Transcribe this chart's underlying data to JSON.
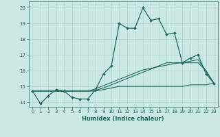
{
  "xlabel": "Humidex (Indice chaleur)",
  "background_color": "#cce8e4",
  "grid_color": "#aed4cf",
  "line_color": "#1a6b5a",
  "xlim": [
    -0.5,
    23.5
  ],
  "ylim": [
    13.7,
    20.4
  ],
  "xtick_labels": [
    "0",
    "1",
    "2",
    "3",
    "4",
    "5",
    "6",
    "7",
    "8",
    "9",
    "10",
    "11",
    "12",
    "13",
    "14",
    "15",
    "16",
    "17",
    "18",
    "19",
    "20",
    "21",
    "22",
    "23"
  ],
  "ytick_values": [
    14,
    15,
    16,
    17,
    18,
    19,
    20
  ],
  "line1": [
    14.7,
    13.9,
    14.4,
    14.8,
    14.7,
    14.3,
    14.2,
    14.2,
    14.8,
    15.8,
    16.3,
    19.0,
    18.7,
    18.7,
    20.0,
    19.2,
    19.3,
    18.3,
    18.4,
    16.5,
    16.8,
    17.0,
    15.8,
    15.2
  ],
  "line2": [
    14.7,
    14.7,
    14.7,
    14.7,
    14.7,
    14.7,
    14.7,
    14.7,
    14.85,
    15.05,
    15.25,
    15.45,
    15.65,
    15.85,
    16.05,
    16.15,
    16.25,
    16.35,
    16.45,
    16.5,
    16.6,
    16.7,
    16.0,
    15.2
  ],
  "line3": [
    14.7,
    14.7,
    14.7,
    14.7,
    14.7,
    14.7,
    14.7,
    14.7,
    14.75,
    14.9,
    15.1,
    15.3,
    15.5,
    15.7,
    15.9,
    16.1,
    16.3,
    16.5,
    16.5,
    16.5,
    16.5,
    16.5,
    16.0,
    15.2
  ],
  "line4": [
    14.7,
    14.7,
    14.7,
    14.7,
    14.7,
    14.7,
    14.7,
    14.7,
    14.7,
    14.8,
    14.9,
    15.0,
    15.0,
    15.0,
    15.0,
    15.0,
    15.0,
    15.0,
    15.0,
    15.0,
    15.1,
    15.1,
    15.1,
    15.2
  ]
}
